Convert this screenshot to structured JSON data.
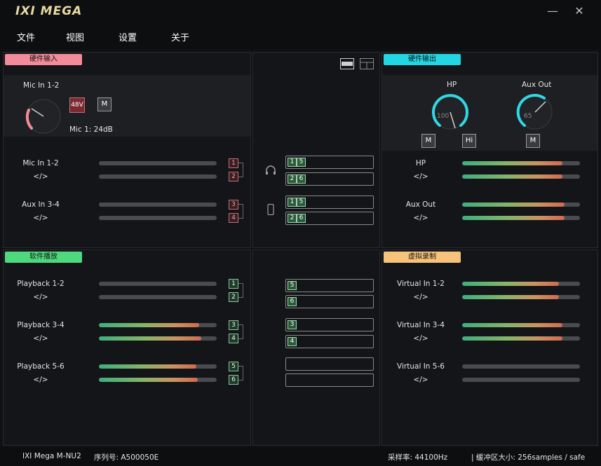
{
  "app": {
    "logo": "IXI MEGA",
    "minimize": "—",
    "close": "✕"
  },
  "menu": [
    "文件",
    "视图",
    "设置",
    "关于"
  ],
  "hw_in": {
    "title": "硬件输入",
    "color": "#f28b9a",
    "top_label": "Mic In 1-2",
    "btn_48v": "48V",
    "btn_m": "M",
    "gain": "Mic 1: 24dB",
    "rows": [
      {
        "label": "Mic In 1-2",
        "chip": "1",
        "level": 0
      },
      {
        "label": "</>",
        "chip": "2",
        "level": 0
      },
      {
        "label": "Aux In 3-4",
        "chip": "3",
        "level": 0
      },
      {
        "label": "</>",
        "chip": "4",
        "level": 0
      }
    ]
  },
  "hw_out": {
    "title": "硬件输出",
    "color": "#23d6e3",
    "hp_label": "HP",
    "hp_value": "100",
    "aux_label": "Aux Out",
    "aux_value": "65",
    "btn_m": "M",
    "btn_hi": "Hi",
    "btn_m2": "M",
    "rows": [
      {
        "label": "HP",
        "level": 0.85
      },
      {
        "label": "</>",
        "level": 0.85
      },
      {
        "label": "Aux Out",
        "level": 0.87
      },
      {
        "label": "</>",
        "level": 0.87
      }
    ]
  },
  "sw_play": {
    "title": "软件播放",
    "color": "#4fd97e",
    "rows": [
      {
        "label": "Playback 1-2",
        "chip": "1",
        "level": 0
      },
      {
        "label": "</>",
        "chip": "2",
        "level": 0
      },
      {
        "label": "Playback 3-4",
        "chip": "3",
        "level": 0.85
      },
      {
        "label": "</>",
        "chip": "4",
        "level": 0.87
      },
      {
        "label": "Playback 5-6",
        "chip": "5",
        "level": 0.83
      },
      {
        "label": "</>",
        "chip": "6",
        "level": 0.84
      }
    ]
  },
  "vrec": {
    "title": "虚拟录制",
    "color": "#f7c27a",
    "rows": [
      {
        "label": "Virtual In 1-2",
        "level": 0.82
      },
      {
        "label": "</>",
        "level": 0.82
      },
      {
        "label": "Virtual In 3-4",
        "level": 0.85
      },
      {
        "label": "</>",
        "level": 0.85
      },
      {
        "label": "Virtual In 5-6",
        "level": 0
      },
      {
        "label": "</>",
        "level": 0
      }
    ]
  },
  "routing_top": [
    {
      "a": "1",
      "b": "5"
    },
    {
      "a": "2",
      "b": "6"
    },
    {
      "a": "1",
      "b": "5"
    },
    {
      "a": "2",
      "b": "6"
    }
  ],
  "routing_bottom": [
    "5",
    "6",
    "3",
    "4",
    "",
    ""
  ],
  "status": {
    "device": "IXI Mega M-NU2",
    "serial": "序列号: A500050E",
    "rate": "采样率: 44100Hz",
    "buffer": "| 缓冲区大小: 256samples / safe"
  }
}
